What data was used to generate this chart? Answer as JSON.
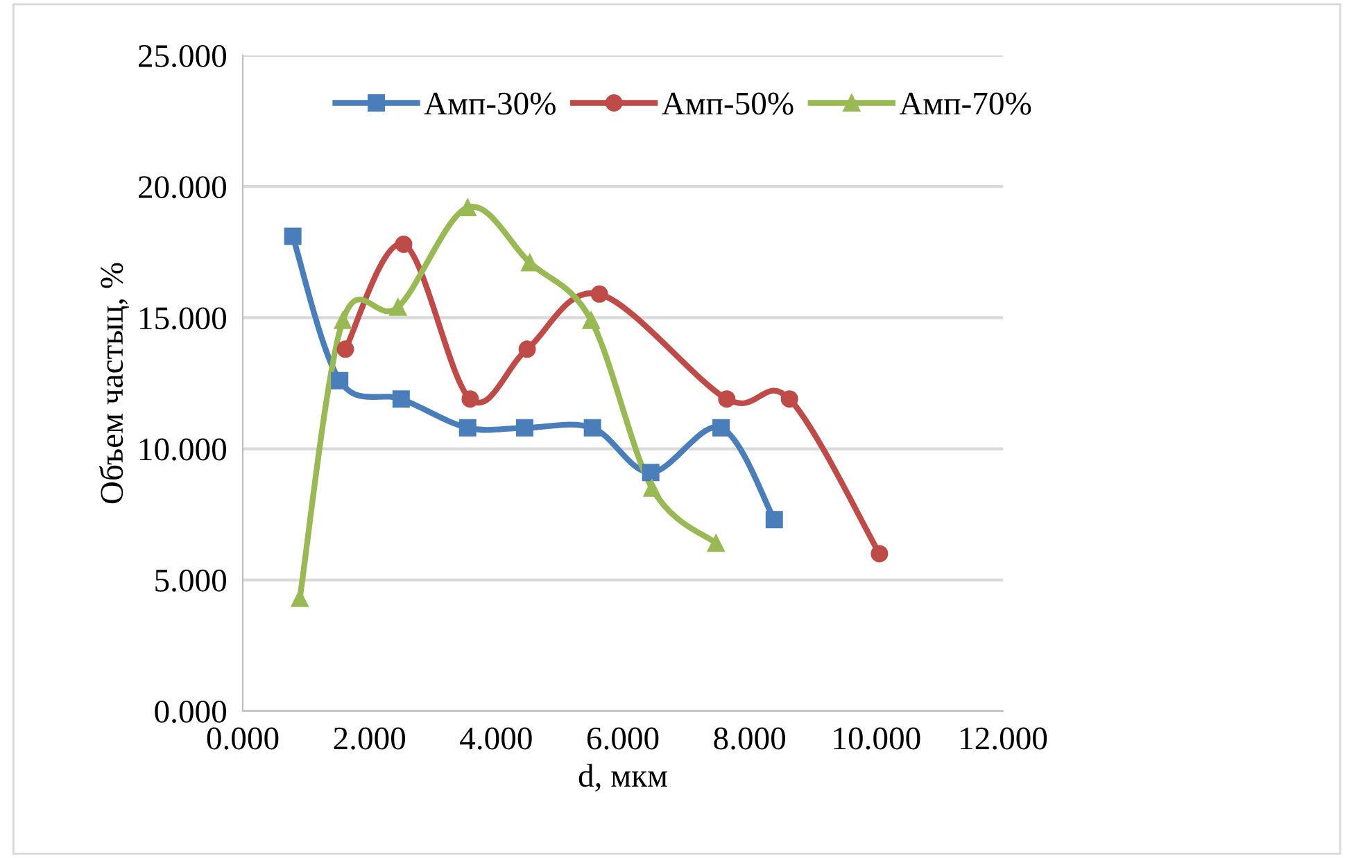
{
  "chart_data": {
    "type": "line",
    "xlabel": "d, мкм",
    "ylabel": "Объем частыц, %",
    "xlim": [
      0,
      12
    ],
    "ylim": [
      0,
      25
    ],
    "xticks": [
      {
        "value": 0,
        "label": "0.000"
      },
      {
        "value": 2,
        "label": "2.000"
      },
      {
        "value": 4,
        "label": "4.000"
      },
      {
        "value": 6,
        "label": "6.000"
      },
      {
        "value": 8,
        "label": "8.000"
      },
      {
        "value": 10,
        "label": "10.000"
      },
      {
        "value": 12,
        "label": "12.000"
      }
    ],
    "yticks": [
      {
        "value": 0,
        "label": "0.000"
      },
      {
        "value": 5,
        "label": "5.000"
      },
      {
        "value": 10,
        "label": "10.000"
      },
      {
        "value": 15,
        "label": "15.000"
      },
      {
        "value": 20,
        "label": "20.000"
      },
      {
        "value": 25,
        "label": "25.000"
      }
    ],
    "grid": "y",
    "legend": "top",
    "line_style": "solid",
    "series": [
      {
        "name": "Амп-30%",
        "color": "#4a7ebb",
        "marker": "square",
        "x": [
          0.79,
          1.53,
          2.5,
          3.55,
          4.45,
          5.52,
          6.44,
          7.55,
          8.39
        ],
        "values": [
          18.1,
          12.6,
          11.9,
          10.8,
          10.8,
          10.8,
          9.1,
          10.8,
          7.3
        ]
      },
      {
        "name": "Амп-50%",
        "color": "#be4b48",
        "marker": "circle",
        "x": [
          1.62,
          2.54,
          3.59,
          4.49,
          5.63,
          7.64,
          8.63,
          10.05
        ],
        "values": [
          13.8,
          17.8,
          11.9,
          13.8,
          15.9,
          11.9,
          11.9,
          6.0
        ]
      },
      {
        "name": "Амп-70%",
        "color": "#98b954",
        "marker": "triangle",
        "x": [
          0.9,
          1.58,
          2.45,
          3.55,
          4.53,
          5.5,
          6.46,
          7.47
        ],
        "values": [
          4.3,
          14.9,
          15.4,
          19.2,
          17.1,
          14.9,
          8.5,
          6.4
        ]
      }
    ]
  }
}
